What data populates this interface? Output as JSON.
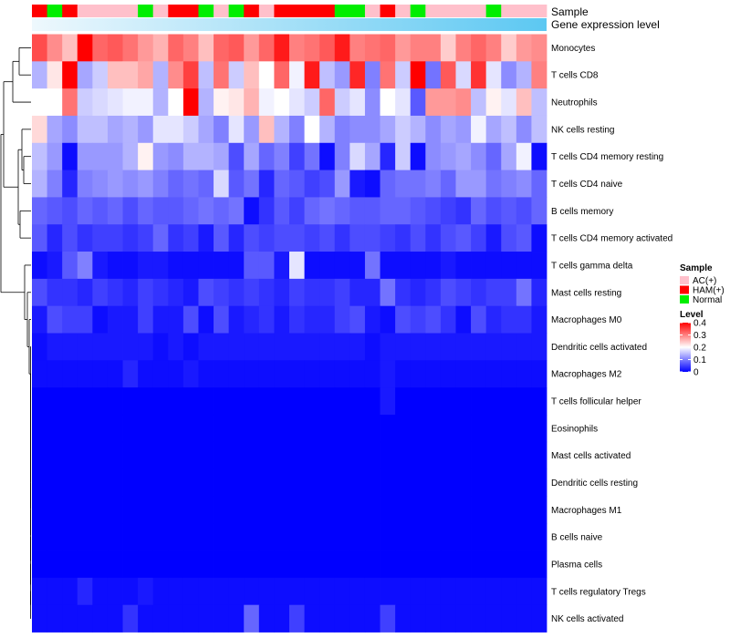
{
  "chart_data": {
    "type": "heatmap",
    "title": "",
    "annotation_labels": {
      "sample": "Sample",
      "gene": "Gene expression level"
    },
    "legends": {
      "sample_title": "Sample",
      "sample_entries": [
        {
          "name": "AC(+)",
          "color": "#ffc0cb"
        },
        {
          "name": "HAM(+)",
          "color": "#ff0000"
        },
        {
          "name": "Normal",
          "color": "#00ee00"
        }
      ],
      "level_title": "Level",
      "level_ticks": [
        "0.4",
        "0.3",
        "0.2",
        "0.1",
        "0"
      ],
      "level_range": [
        0,
        0.4
      ]
    },
    "colors": {
      "low": "#0000ff",
      "mid": "#ffffff",
      "high": "#ff0000",
      "gene_bar": "#5cc8f2",
      "gene_bar_light": "#eef8fd",
      "dendrogram": "#000000"
    },
    "samples": [
      "HAM(+)",
      "Normal",
      "HAM(+)",
      "AC(+)",
      "AC(+)",
      "AC(+)",
      "AC(+)",
      "Normal",
      "AC(+)",
      "HAM(+)",
      "HAM(+)",
      "Normal",
      "AC(+)",
      "Normal",
      "HAM(+)",
      "AC(+)",
      "HAM(+)",
      "HAM(+)",
      "HAM(+)",
      "HAM(+)",
      "Normal",
      "Normal",
      "AC(+)",
      "HAM(+)",
      "AC(+)",
      "Normal",
      "AC(+)",
      "AC(+)",
      "AC(+)",
      "AC(+)",
      "Normal",
      "AC(+)",
      "AC(+)",
      "AC(+)"
    ],
    "gene_expression_gradient": "rising from left to right",
    "rows": [
      "Monocytes",
      "T cells CD8",
      "Neutrophils",
      "NK cells resting",
      "T cells CD4 memory resting",
      "T cells CD4 naive",
      "B cells memory",
      "T cells CD4 memory activated",
      "T cells gamma delta",
      "Mast cells resting",
      "Macrophages M0",
      "Dendritic cells activated",
      "Macrophages M2",
      "T cells follicular helper",
      "Eosinophils",
      "Mast cells activated",
      "Dendritic cells resting",
      "Macrophages M1",
      "B cells naive",
      "Plasma cells",
      "T cells regulatory  Tregs",
      "NK cells activated"
    ],
    "values": [
      [
        0.34,
        0.29,
        0.25,
        0.4,
        0.32,
        0.33,
        0.31,
        0.28,
        0.26,
        0.32,
        0.3,
        0.25,
        0.32,
        0.33,
        0.28,
        0.32,
        0.38,
        0.3,
        0.31,
        0.33,
        0.38,
        0.3,
        0.31,
        0.32,
        0.28,
        0.3,
        0.3,
        0.24,
        0.3,
        0.32,
        0.3,
        0.24,
        0.28,
        0.29
      ],
      [
        0.14,
        0.22,
        0.4,
        0.13,
        0.16,
        0.25,
        0.25,
        0.27,
        0.14,
        0.29,
        0.35,
        0.15,
        0.31,
        0.16,
        0.25,
        0.2,
        0.32,
        0.19,
        0.38,
        0.15,
        0.12,
        0.37,
        0.1,
        0.31,
        0.16,
        0.4,
        0.09,
        0.33,
        0.17,
        0.36,
        0.18,
        0.11,
        0.14,
        0.3
      ],
      [
        0.2,
        0.2,
        0.31,
        0.16,
        0.17,
        0.18,
        0.19,
        0.19,
        0.14,
        0.2,
        0.4,
        0.14,
        0.21,
        0.22,
        0.26,
        0.19,
        0.2,
        0.18,
        0.16,
        0.32,
        0.16,
        0.18,
        0.11,
        0.2,
        0.18,
        0.07,
        0.28,
        0.28,
        0.29,
        0.15,
        0.21,
        0.18,
        0.25,
        0.15
      ],
      [
        0.23,
        0.13,
        0.11,
        0.15,
        0.15,
        0.13,
        0.14,
        0.12,
        0.18,
        0.18,
        0.16,
        0.13,
        0.1,
        0.18,
        0.12,
        0.25,
        0.14,
        0.1,
        0.2,
        0.14,
        0.1,
        0.11,
        0.11,
        0.13,
        0.16,
        0.14,
        0.11,
        0.13,
        0.12,
        0.19,
        0.13,
        0.15,
        0.11,
        0.15
      ],
      [
        0.15,
        0.12,
        0.01,
        0.12,
        0.12,
        0.12,
        0.14,
        0.21,
        0.12,
        0.11,
        0.14,
        0.14,
        0.13,
        0.06,
        0.13,
        0.08,
        0.1,
        0.05,
        0.09,
        0.01,
        0.1,
        0.17,
        0.13,
        0.03,
        0.16,
        0.01,
        0.11,
        0.12,
        0.13,
        0.11,
        0.08,
        0.13,
        0.19,
        0.01
      ],
      [
        0.14,
        0.1,
        0.03,
        0.1,
        0.11,
        0.12,
        0.11,
        0.12,
        0.1,
        0.08,
        0.09,
        0.08,
        0.17,
        0.07,
        0.09,
        0.03,
        0.08,
        0.07,
        0.05,
        0.06,
        0.12,
        0.02,
        0.01,
        0.08,
        0.09,
        0.09,
        0.1,
        0.08,
        0.12,
        0.12,
        0.09,
        0.1,
        0.11,
        0.08
      ],
      [
        0.08,
        0.07,
        0.06,
        0.08,
        0.07,
        0.08,
        0.06,
        0.08,
        0.07,
        0.07,
        0.08,
        0.09,
        0.08,
        0.09,
        0.01,
        0.04,
        0.07,
        0.05,
        0.08,
        0.09,
        0.08,
        0.07,
        0.07,
        0.08,
        0.08,
        0.07,
        0.06,
        0.05,
        0.04,
        0.08,
        0.06,
        0.07,
        0.06,
        0.08
      ],
      [
        0.07,
        0.03,
        0.06,
        0.04,
        0.05,
        0.05,
        0.04,
        0.05,
        0.08,
        0.04,
        0.05,
        0.02,
        0.07,
        0.03,
        0.06,
        0.05,
        0.06,
        0.06,
        0.05,
        0.06,
        0.04,
        0.06,
        0.06,
        0.05,
        0.04,
        0.06,
        0.04,
        0.06,
        0.07,
        0.05,
        0.02,
        0.06,
        0.07,
        0.01
      ],
      [
        0.01,
        0.02,
        0.07,
        0.1,
        0.02,
        0.01,
        0.01,
        0.02,
        0.02,
        0.01,
        0.01,
        0.01,
        0.01,
        0.01,
        0.07,
        0.07,
        0.02,
        0.18,
        0.01,
        0.01,
        0.01,
        0.01,
        0.09,
        0.01,
        0.01,
        0.01,
        0.01,
        0.02,
        0.01,
        0.01,
        0.01,
        0.01,
        0.01,
        0.01
      ],
      [
        0.06,
        0.04,
        0.04,
        0.03,
        0.05,
        0.04,
        0.03,
        0.05,
        0.04,
        0.03,
        0.02,
        0.06,
        0.05,
        0.04,
        0.05,
        0.04,
        0.03,
        0.05,
        0.04,
        0.04,
        0.05,
        0.03,
        0.03,
        0.09,
        0.04,
        0.03,
        0.04,
        0.06,
        0.05,
        0.04,
        0.05,
        0.05,
        0.09,
        0.03
      ],
      [
        0.02,
        0.06,
        0.05,
        0.05,
        0.01,
        0.02,
        0.02,
        0.05,
        0.02,
        0.02,
        0.06,
        0.01,
        0.06,
        0.02,
        0.03,
        0.04,
        0.02,
        0.04,
        0.03,
        0.03,
        0.05,
        0.06,
        0.02,
        0.01,
        0.06,
        0.05,
        0.06,
        0.04,
        0.01,
        0.06,
        0.03,
        0.04,
        0.04,
        0.02
      ],
      [
        0.01,
        0.02,
        0.02,
        0.02,
        0.02,
        0.02,
        0.02,
        0.02,
        0.01,
        0.02,
        0.01,
        0.02,
        0.02,
        0.02,
        0.02,
        0.02,
        0.02,
        0.02,
        0.02,
        0.02,
        0.02,
        0.02,
        0.01,
        0.02,
        0.02,
        0.02,
        0.02,
        0.02,
        0.02,
        0.02,
        0.02,
        0.02,
        0.02,
        0.02
      ],
      [
        0.01,
        0.01,
        0.01,
        0.01,
        0.01,
        0.01,
        0.03,
        0.01,
        0.01,
        0.01,
        0.02,
        0.01,
        0.01,
        0.01,
        0.01,
        0.01,
        0.01,
        0.01,
        0.01,
        0.01,
        0.01,
        0.01,
        0.01,
        0.02,
        0.01,
        0.01,
        0.01,
        0.01,
        0.01,
        0.01,
        0.01,
        0.01,
        0.01,
        0.01
      ],
      [
        0.0,
        0.0,
        0.0,
        0.0,
        0.0,
        0.0,
        0.0,
        0.0,
        0.0,
        0.0,
        0.0,
        0.0,
        0.0,
        0.0,
        0.0,
        0.0,
        0.0,
        0.0,
        0.0,
        0.0,
        0.0,
        0.0,
        0.0,
        0.02,
        0.0,
        0.0,
        0.0,
        0.0,
        0.0,
        0.0,
        0.0,
        0.0,
        0.0,
        0.0
      ],
      [
        0.0,
        0.0,
        0.0,
        0.0,
        0.0,
        0.0,
        0.0,
        0.0,
        0.0,
        0.0,
        0.0,
        0.0,
        0.0,
        0.0,
        0.0,
        0.0,
        0.0,
        0.0,
        0.0,
        0.0,
        0.0,
        0.0,
        0.0,
        0.0,
        0.0,
        0.0,
        0.0,
        0.0,
        0.0,
        0.0,
        0.0,
        0.0,
        0.0,
        0.0
      ],
      [
        0.0,
        0.0,
        0.0,
        0.0,
        0.0,
        0.0,
        0.0,
        0.0,
        0.0,
        0.0,
        0.0,
        0.0,
        0.0,
        0.0,
        0.0,
        0.0,
        0.0,
        0.0,
        0.0,
        0.0,
        0.0,
        0.0,
        0.0,
        0.0,
        0.0,
        0.0,
        0.0,
        0.0,
        0.0,
        0.0,
        0.0,
        0.0,
        0.0,
        0.0
      ],
      [
        0.0,
        0.0,
        0.0,
        0.0,
        0.0,
        0.0,
        0.0,
        0.0,
        0.0,
        0.0,
        0.0,
        0.0,
        0.0,
        0.0,
        0.0,
        0.0,
        0.0,
        0.0,
        0.0,
        0.0,
        0.0,
        0.0,
        0.0,
        0.0,
        0.0,
        0.0,
        0.0,
        0.0,
        0.0,
        0.0,
        0.0,
        0.0,
        0.0,
        0.0
      ],
      [
        0.0,
        0.0,
        0.0,
        0.0,
        0.0,
        0.0,
        0.0,
        0.0,
        0.0,
        0.0,
        0.0,
        0.0,
        0.0,
        0.0,
        0.0,
        0.0,
        0.0,
        0.0,
        0.0,
        0.0,
        0.0,
        0.0,
        0.0,
        0.0,
        0.0,
        0.0,
        0.0,
        0.0,
        0.0,
        0.0,
        0.0,
        0.0,
        0.0,
        0.0
      ],
      [
        0.0,
        0.0,
        0.0,
        0.0,
        0.0,
        0.0,
        0.0,
        0.0,
        0.0,
        0.0,
        0.0,
        0.0,
        0.0,
        0.0,
        0.0,
        0.0,
        0.0,
        0.0,
        0.0,
        0.0,
        0.0,
        0.0,
        0.0,
        0.0,
        0.0,
        0.0,
        0.0,
        0.0,
        0.0,
        0.0,
        0.0,
        0.0,
        0.0,
        0.0
      ],
      [
        0.0,
        0.0,
        0.0,
        0.0,
        0.0,
        0.0,
        0.0,
        0.0,
        0.0,
        0.0,
        0.0,
        0.0,
        0.0,
        0.0,
        0.0,
        0.0,
        0.0,
        0.0,
        0.0,
        0.0,
        0.0,
        0.0,
        0.0,
        0.0,
        0.0,
        0.0,
        0.0,
        0.0,
        0.0,
        0.0,
        0.0,
        0.0,
        0.0,
        0.0
      ],
      [
        0.01,
        0.01,
        0.01,
        0.03,
        0.01,
        0.01,
        0.01,
        0.02,
        0.01,
        0.01,
        0.01,
        0.01,
        0.01,
        0.01,
        0.01,
        0.01,
        0.01,
        0.01,
        0.01,
        0.01,
        0.01,
        0.01,
        0.01,
        0.01,
        0.01,
        0.01,
        0.01,
        0.01,
        0.01,
        0.01,
        0.01,
        0.01,
        0.01,
        0.01
      ],
      [
        0.01,
        0.01,
        0.01,
        0.01,
        0.01,
        0.01,
        0.04,
        0.01,
        0.01,
        0.01,
        0.01,
        0.01,
        0.01,
        0.01,
        0.08,
        0.01,
        0.01,
        0.05,
        0.01,
        0.01,
        0.01,
        0.01,
        0.01,
        0.05,
        0.01,
        0.01,
        0.01,
        0.01,
        0.01,
        0.01,
        0.01,
        0.01,
        0.01,
        0.01
      ]
    ]
  }
}
